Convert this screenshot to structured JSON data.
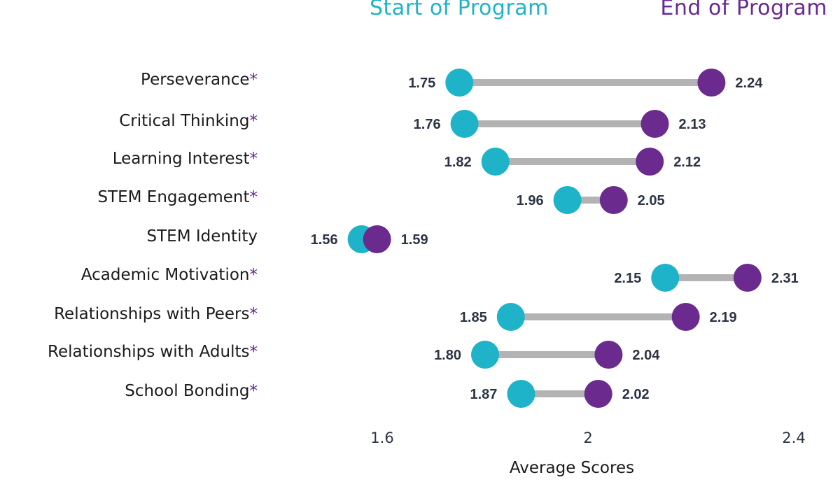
{
  "chart_data": {
    "type": "dumbbell",
    "legend": {
      "start": "Start of Program",
      "end": "End of Program"
    },
    "xlabel": "Average Scores",
    "xlim": [
      1.45,
      2.42
    ],
    "ticks": [
      "1.6",
      "2",
      "2.4"
    ],
    "tick_values": [
      1.6,
      2.0,
      2.4
    ],
    "colors": {
      "start": "#1eb3c9",
      "end": "#6a2a8e",
      "connector": "#b3b3b3"
    },
    "categories": [
      {
        "label": "Perseverance",
        "star": "*",
        "start": 1.75,
        "end": 2.24,
        "start_label": "1.75",
        "end_label": "2.24"
      },
      {
        "label": "Critical Thinking",
        "star": "*",
        "start": 1.76,
        "end": 2.13,
        "start_label": "1.76",
        "end_label": "2.13"
      },
      {
        "label": "Learning Interest",
        "star": "*",
        "start": 1.82,
        "end": 2.12,
        "start_label": "1.82",
        "end_label": "2.12"
      },
      {
        "label": "STEM Engagement",
        "star": "*",
        "start": 1.96,
        "end": 2.05,
        "start_label": "1.96",
        "end_label": "2.05"
      },
      {
        "label": "STEM Identity",
        "star": "",
        "start": 1.56,
        "end": 1.59,
        "start_label": "1.56",
        "end_label": "1.59"
      },
      {
        "label": "Academic Motivation",
        "star": "*",
        "start": 2.15,
        "end": 2.31,
        "start_label": "2.15",
        "end_label": "2.31"
      },
      {
        "label": "Relationships with Peers",
        "star": "*",
        "start": 1.85,
        "end": 2.19,
        "start_label": "1.85",
        "end_label": "2.19"
      },
      {
        "label": "Relationships with Adults",
        "star": "*",
        "start": 1.8,
        "end": 2.04,
        "start_label": "1.80",
        "end_label": "2.04"
      },
      {
        "label": "School Bonding",
        "star": "*",
        "start": 1.87,
        "end": 2.02,
        "start_label": "1.87",
        "end_label": "2.02"
      }
    ]
  }
}
